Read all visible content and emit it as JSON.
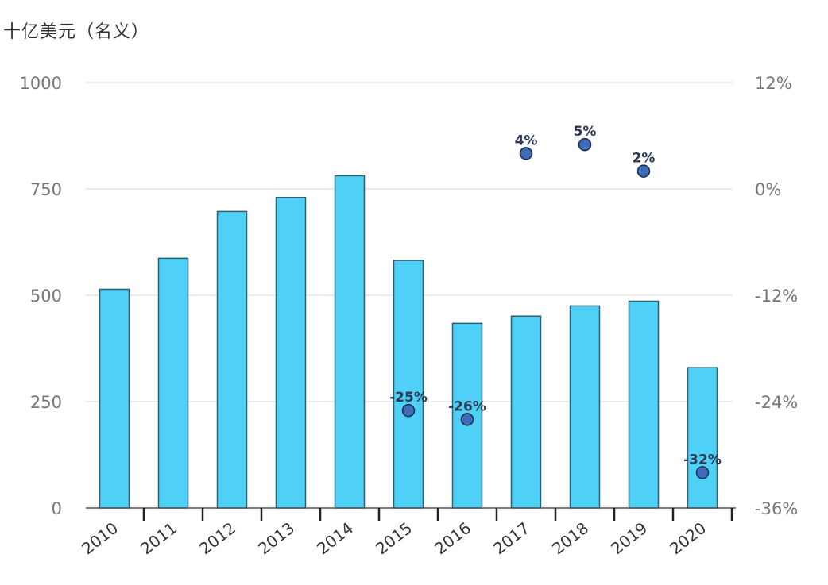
{
  "chart_data": {
    "type": "bar",
    "unit_label": "十亿美元（名义）",
    "categories": [
      "2010",
      "2011",
      "2012",
      "2013",
      "2014",
      "2015",
      "2016",
      "2017",
      "2018",
      "2019",
      "2020"
    ],
    "series": [
      {
        "name": "value",
        "axis": "left",
        "type": "bar",
        "color": "#4fd1f7",
        "values": [
          514,
          587,
          697,
          730,
          781,
          582,
          434,
          451,
          475,
          486,
          330
        ]
      },
      {
        "name": "growth",
        "axis": "right",
        "type": "scatter",
        "color": "#3d6db8",
        "values": [
          null,
          null,
          null,
          null,
          null,
          -25,
          -26,
          4,
          5,
          2,
          -32
        ],
        "labels": [
          null,
          null,
          null,
          null,
          null,
          "-25%",
          "-26%",
          "4%",
          "5%",
          "2%",
          "-32%"
        ]
      }
    ],
    "ylim_left": [
      0,
      1000
    ],
    "yticks_left": [
      0,
      250,
      500,
      750,
      1000
    ],
    "yticks_left_labels": [
      "0",
      "250",
      "500",
      "750",
      "1000"
    ],
    "ylim_right": [
      -36,
      12
    ],
    "yticks_right": [
      -36,
      -24,
      -12,
      0,
      12
    ],
    "yticks_right_labels": [
      "-36%",
      "-24%",
      "-12%",
      "0%",
      "12%"
    ],
    "grid": true
  }
}
